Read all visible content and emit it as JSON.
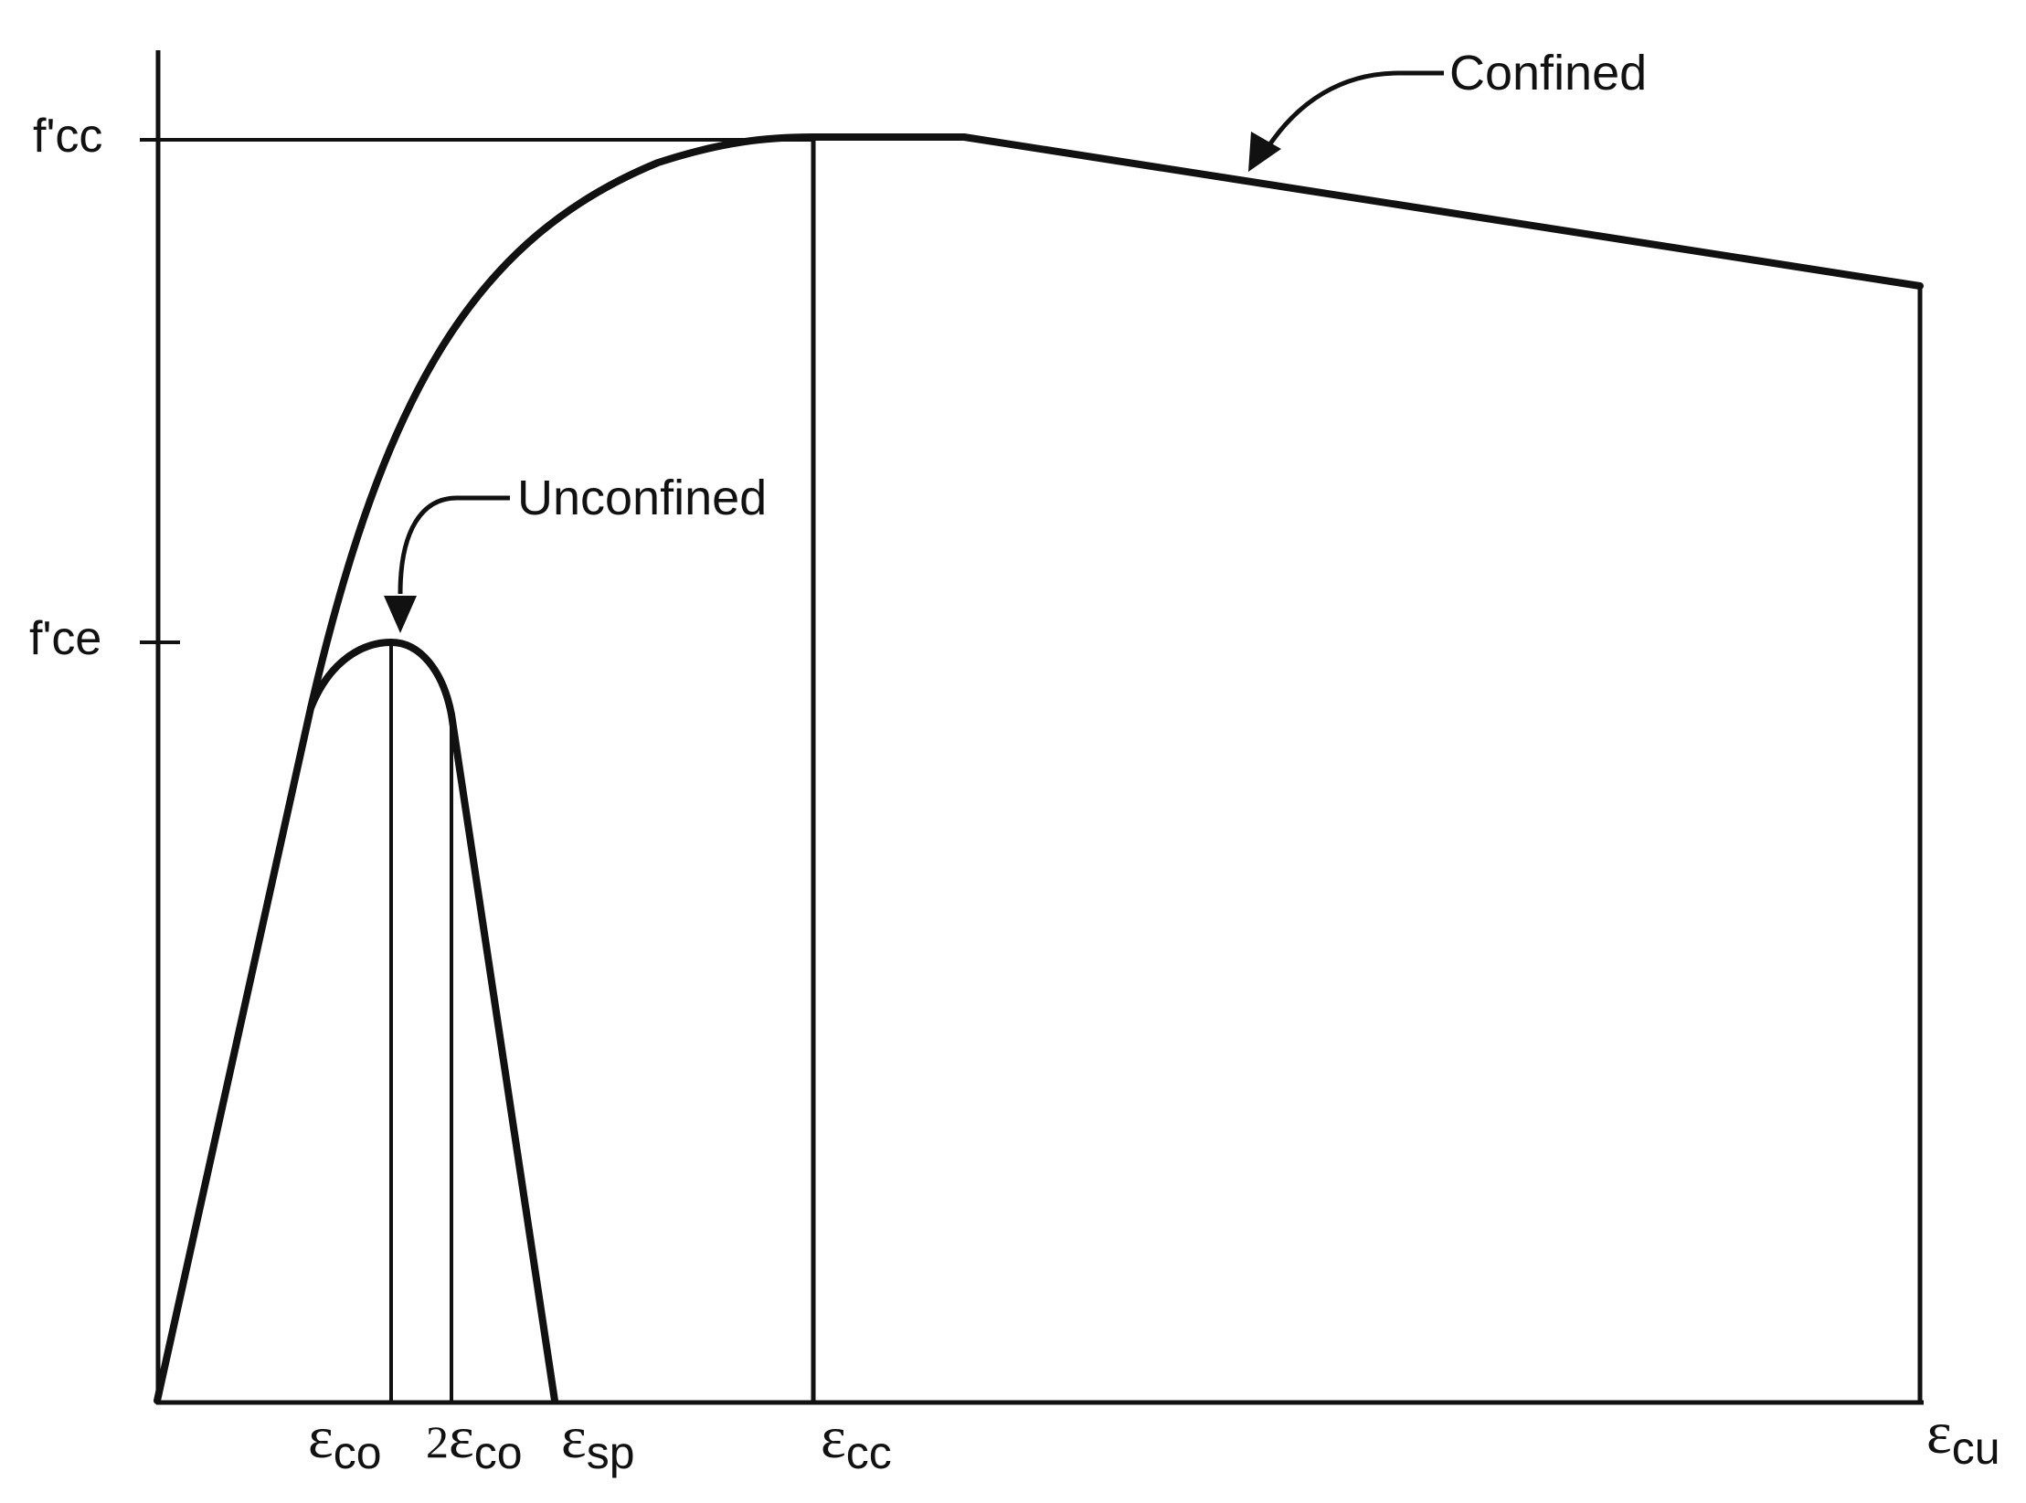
{
  "curves": {
    "confined_label": "Confined",
    "unconfined_label": "Unconfined"
  },
  "y_ticks": {
    "fcc": "f'cc",
    "fce": "f'ce"
  },
  "x_ticks": {
    "eps_co": {
      "symbol": "ε",
      "sub": "co"
    },
    "two_eps_co": {
      "prefix": "2",
      "symbol": "ε",
      "sub": "co"
    },
    "eps_sp": {
      "symbol": "ε",
      "sub": "sp"
    },
    "eps_cc": {
      "symbol": "ε",
      "sub": "cc"
    },
    "eps_cu": {
      "symbol": "ε",
      "sub": "cu"
    }
  },
  "colors": {
    "ink": "#111111",
    "background": "#ffffff"
  }
}
